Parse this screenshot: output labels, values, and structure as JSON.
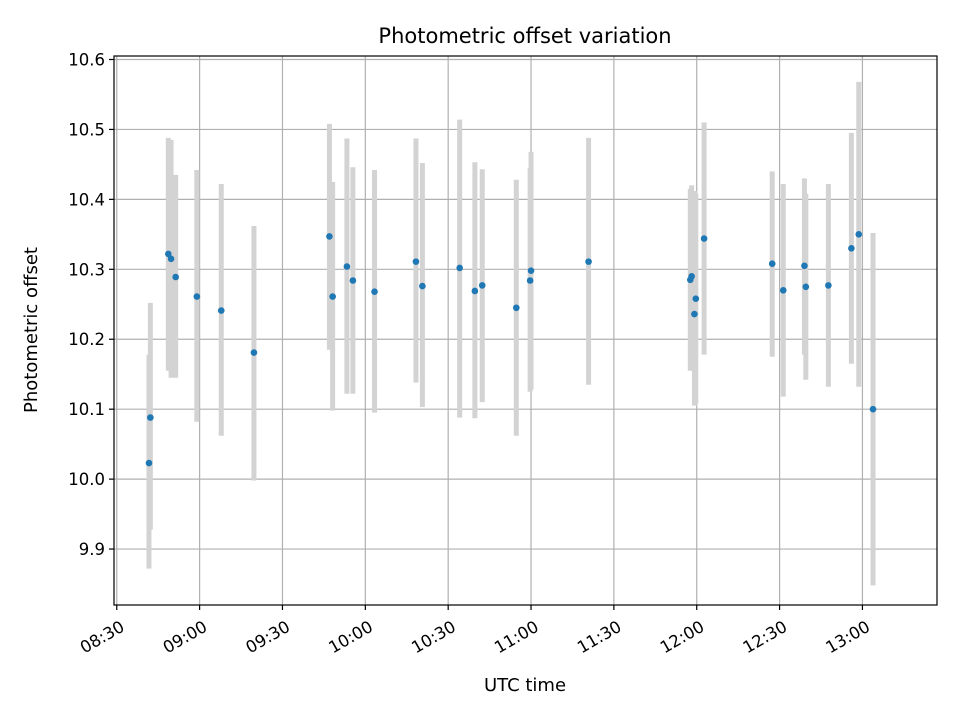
{
  "chart_data": {
    "type": "scatter",
    "title": "Photometric offset variation",
    "xlabel": "UTC time",
    "ylabel": "Photometric offset",
    "x_kind": "time",
    "xlim": [
      "08:29",
      "13:27"
    ],
    "ylim": [
      9.82,
      10.605
    ],
    "x_ticks": [
      "08:30",
      "09:00",
      "09:30",
      "10:00",
      "10:30",
      "11:00",
      "11:30",
      "12:00",
      "12:30",
      "13:00"
    ],
    "y_ticks": [
      9.9,
      10.0,
      10.1,
      10.2,
      10.3,
      10.4,
      10.5,
      10.6
    ],
    "y_tick_labels": [
      "9.9",
      "10.0",
      "10.1",
      "10.2",
      "10.3",
      "10.4",
      "10.5",
      "10.6"
    ],
    "grid": true,
    "marker_color": "#1f77b4",
    "errorbar_color": "#d3d3d3",
    "points": [
      {
        "x": "08:41:40",
        "y": 10.023,
        "err_low": 9.872,
        "err_high": 10.178
      },
      {
        "x": "08:42:10",
        "y": 10.088,
        "err_low": 9.928,
        "err_high": 10.252
      },
      {
        "x": "08:48:40",
        "y": 10.322,
        "err_low": 10.155,
        "err_high": 10.488
      },
      {
        "x": "08:49:40",
        "y": 10.315,
        "err_low": 10.145,
        "err_high": 10.485
      },
      {
        "x": "08:51:20",
        "y": 10.289,
        "err_low": 10.145,
        "err_high": 10.435
      },
      {
        "x": "08:59:00",
        "y": 10.261,
        "err_low": 10.082,
        "err_high": 10.442
      },
      {
        "x": "09:07:50",
        "y": 10.241,
        "err_low": 10.062,
        "err_high": 10.422
      },
      {
        "x": "09:19:40",
        "y": 10.181,
        "err_low": 9.998,
        "err_high": 10.362
      },
      {
        "x": "09:47:00",
        "y": 10.347,
        "err_low": 10.185,
        "err_high": 10.508
      },
      {
        "x": "09:48:10",
        "y": 10.261,
        "err_low": 10.098,
        "err_high": 10.425
      },
      {
        "x": "09:53:20",
        "y": 10.304,
        "err_low": 10.122,
        "err_high": 10.487
      },
      {
        "x": "09:55:30",
        "y": 10.284,
        "err_low": 10.122,
        "err_high": 10.446
      },
      {
        "x": "10:03:20",
        "y": 10.268,
        "err_low": 10.095,
        "err_high": 10.442
      },
      {
        "x": "10:18:20",
        "y": 10.311,
        "err_low": 10.138,
        "err_high": 10.487
      },
      {
        "x": "10:20:40",
        "y": 10.276,
        "err_low": 10.103,
        "err_high": 10.452
      },
      {
        "x": "10:34:10",
        "y": 10.302,
        "err_low": 10.088,
        "err_high": 10.514
      },
      {
        "x": "10:39:40",
        "y": 10.269,
        "err_low": 10.087,
        "err_high": 10.453
      },
      {
        "x": "10:42:20",
        "y": 10.277,
        "err_low": 10.11,
        "err_high": 10.443
      },
      {
        "x": "10:54:40",
        "y": 10.245,
        "err_low": 10.062,
        "err_high": 10.428
      },
      {
        "x": "10:59:40",
        "y": 10.284,
        "err_low": 10.125,
        "err_high": 10.445
      },
      {
        "x": "11:00:00",
        "y": 10.298,
        "err_low": 10.128,
        "err_high": 10.468
      },
      {
        "x": "11:20:50",
        "y": 10.311,
        "err_low": 10.135,
        "err_high": 10.488
      },
      {
        "x": "11:57:40",
        "y": 10.285,
        "err_low": 10.155,
        "err_high": 10.415
      },
      {
        "x": "11:58:10",
        "y": 10.29,
        "err_low": 10.158,
        "err_high": 10.42
      },
      {
        "x": "11:59:10",
        "y": 10.236,
        "err_low": 10.105,
        "err_high": 10.412
      },
      {
        "x": "11:59:40",
        "y": 10.258,
        "err_low": 10.108,
        "err_high": 10.408
      },
      {
        "x": "12:02:40",
        "y": 10.344,
        "err_low": 10.178,
        "err_high": 10.51
      },
      {
        "x": "12:27:20",
        "y": 10.308,
        "err_low": 10.175,
        "err_high": 10.44
      },
      {
        "x": "12:31:20",
        "y": 10.27,
        "err_low": 10.118,
        "err_high": 10.422
      },
      {
        "x": "12:39:00",
        "y": 10.305,
        "err_low": 10.178,
        "err_high": 10.43
      },
      {
        "x": "12:39:30",
        "y": 10.275,
        "err_low": 10.142,
        "err_high": 10.408
      },
      {
        "x": "12:47:40",
        "y": 10.277,
        "err_low": 10.132,
        "err_high": 10.422
      },
      {
        "x": "12:56:00",
        "y": 10.33,
        "err_low": 10.165,
        "err_high": 10.495
      },
      {
        "x": "12:58:40",
        "y": 10.35,
        "err_low": 10.132,
        "err_high": 10.568
      },
      {
        "x": "13:03:50",
        "y": 10.1,
        "err_low": 9.848,
        "err_high": 10.352
      }
    ]
  }
}
